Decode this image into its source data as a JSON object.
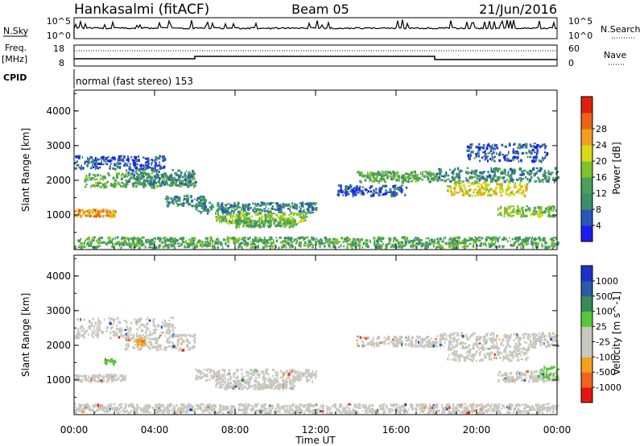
{
  "header": {
    "station": "Hankasalmi (fitACF)",
    "beam": "Beam 05",
    "date": "21/Jun/2016"
  },
  "top_panels": {
    "nsky_label": "N.Sky",
    "nsearch_label": "N.Search",
    "nsky_ticks": [
      "10^5",
      "10^0"
    ],
    "nsearch_ticks": [
      "10^5",
      "10^0"
    ],
    "freq_label_1": "Freq.",
    "freq_label_2": "[MHz]",
    "freq_ticks": [
      "18",
      "8"
    ],
    "nave_label": "Nave",
    "nave_ticks": [
      "60",
      "0"
    ],
    "cpid_label": "CPID",
    "cpid_text": "normal (fast stereo) 153"
  },
  "colors": {
    "power": [
      "#1c1cf0",
      "#2a57b8",
      "#3d8f6b",
      "#4aa05a",
      "#7ec32a",
      "#d9d917",
      "#f0a020",
      "#e86414",
      "#dd2010"
    ],
    "velocity": [
      "#e61414",
      "#f0641e",
      "#f5a01e",
      "#c8c8c0",
      "#c8c8c0",
      "#58c83a",
      "#3a8a5a",
      "#2a5aa8",
      "#1e32c8"
    ],
    "gray_scatter": "#c0c0bc"
  },
  "chart_data": [
    {
      "type": "heatmap",
      "panel": "power",
      "ylabel": "Slant Range [km]",
      "yticks": [
        "1000",
        "2000",
        "3000",
        "4000"
      ],
      "ylim": [
        0,
        4600
      ],
      "xlim": [
        0,
        24
      ],
      "colorbar_label": "Power [dB]",
      "colorbar_ticks": [
        "4",
        "8",
        "12",
        "16",
        "20",
        "24",
        "28"
      ],
      "colorbar_range": [
        0,
        32
      ],
      "bands": [
        {
          "t0": 0.0,
          "t1": 4.5,
          "r0": 2300,
          "r1": 2700,
          "level": 1
        },
        {
          "t0": 0.5,
          "t1": 6.0,
          "r0": 1800,
          "r1": 2200,
          "level": 3
        },
        {
          "t0": 0.0,
          "t1": 2.0,
          "r0": 950,
          "r1": 1150,
          "level": 6
        },
        {
          "t0": 2.5,
          "t1": 6.0,
          "r0": 1850,
          "r1": 2300,
          "level": 2
        },
        {
          "t0": 4.5,
          "t1": 6.5,
          "r0": 1250,
          "r1": 1550,
          "level": 2
        },
        {
          "t0": 6.0,
          "t1": 12.0,
          "r0": 1050,
          "r1": 1350,
          "level": 2
        },
        {
          "t0": 7.0,
          "t1": 11.5,
          "r0": 750,
          "r1": 1050,
          "level": 4
        },
        {
          "t0": 8.0,
          "t1": 11.0,
          "r0": 650,
          "r1": 850,
          "level": 3
        },
        {
          "t0": 13.0,
          "t1": 16.5,
          "r0": 1550,
          "r1": 1850,
          "level": 1
        },
        {
          "t0": 14.0,
          "t1": 18.0,
          "r0": 1950,
          "r1": 2250,
          "level": 3
        },
        {
          "t0": 18.0,
          "t1": 24.0,
          "r0": 1950,
          "r1": 2350,
          "level": 2
        },
        {
          "t0": 18.5,
          "t1": 22.5,
          "r0": 1550,
          "r1": 1950,
          "level": 5
        },
        {
          "t0": 19.5,
          "t1": 23.5,
          "r0": 2550,
          "r1": 3050,
          "level": 1
        },
        {
          "t0": 21.0,
          "t1": 24.0,
          "r0": 950,
          "r1": 1250,
          "level": 4
        },
        {
          "t0": 0.0,
          "t1": 24.0,
          "r0": 50,
          "r1": 350,
          "level": 3
        }
      ]
    },
    {
      "type": "heatmap",
      "panel": "velocity",
      "ylabel": "Slant Range [km]",
      "yticks": [
        "1000",
        "2000",
        "3000",
        "4000"
      ],
      "ylim": [
        0,
        4600
      ],
      "xlim": [
        0,
        24
      ],
      "xlabel": "Time UT",
      "xticks": [
        "00:00",
        "04:00",
        "08:00",
        "12:00",
        "16:00",
        "20:00",
        "00:00"
      ],
      "colorbar_label": "Velocity [m s^-1]",
      "colorbar_ticks": [
        "-1000",
        "-500",
        "-100",
        "-25",
        "25",
        "100",
        "500",
        "1000"
      ],
      "bands": [
        {
          "t0": 0.0,
          "t1": 5.0,
          "r0": 2200,
          "r1": 2800,
          "level": 3
        },
        {
          "t0": 0.0,
          "t1": 2.5,
          "r0": 950,
          "r1": 1150,
          "level": 3
        },
        {
          "t0": 2.5,
          "t1": 6.0,
          "r0": 1850,
          "r1": 2300,
          "level": 3
        },
        {
          "t0": 6.0,
          "t1": 12.0,
          "r0": 950,
          "r1": 1300,
          "level": 3
        },
        {
          "t0": 7.0,
          "t1": 11.0,
          "r0": 750,
          "r1": 950,
          "level": 3
        },
        {
          "t0": 14.0,
          "t1": 18.0,
          "r0": 1950,
          "r1": 2250,
          "level": 3
        },
        {
          "t0": 18.0,
          "t1": 24.0,
          "r0": 1950,
          "r1": 2350,
          "level": 3
        },
        {
          "t0": 18.5,
          "t1": 22.5,
          "r0": 1550,
          "r1": 1950,
          "level": 3
        },
        {
          "t0": 21.0,
          "t1": 24.0,
          "r0": 950,
          "r1": 1250,
          "level": 3
        },
        {
          "t0": 1.5,
          "t1": 2.0,
          "r0": 1450,
          "r1": 1600,
          "level": 5
        },
        {
          "t0": 23.0,
          "t1": 24.0,
          "r0": 1000,
          "r1": 1400,
          "level": 5
        },
        {
          "t0": 3.0,
          "t1": 3.5,
          "r0": 2000,
          "r1": 2200,
          "level": 2
        },
        {
          "t0": 0.0,
          "t1": 24.0,
          "r0": 50,
          "r1": 300,
          "level": 3
        }
      ]
    }
  ]
}
